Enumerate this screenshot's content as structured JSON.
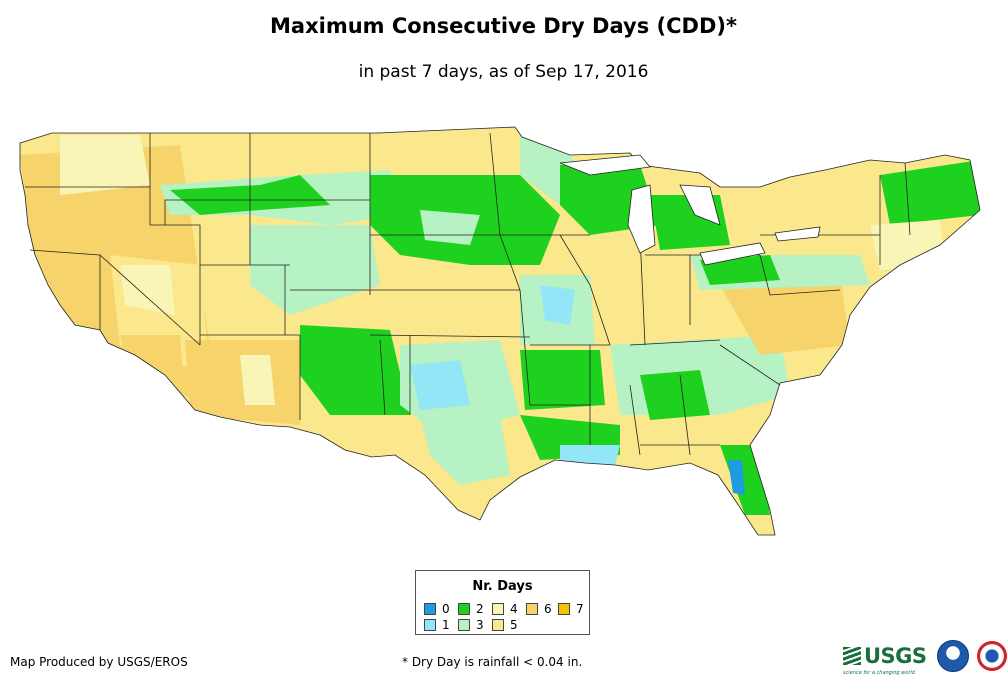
{
  "title": "Maximum Consecutive Dry Days (CDD)*",
  "subtitle": "in past 7 days, as of Sep 17, 2016",
  "legend": {
    "title": "Nr. Days",
    "items": [
      {
        "label": "0",
        "color": "#1f9be0"
      },
      {
        "label": "1",
        "color": "#93e6f5"
      },
      {
        "label": "2",
        "color": "#1fd11f"
      },
      {
        "label": "3",
        "color": "#b6f2c3"
      },
      {
        "label": "4",
        "color": "#f9f5b6"
      },
      {
        "label": "5",
        "color": "#fbe88c"
      },
      {
        "label": "6",
        "color": "#f7d36b"
      },
      {
        "label": "7",
        "color": "#f5c400"
      }
    ]
  },
  "footer": {
    "credit": "Map Produced by USGS/EROS",
    "note": "* Dry Day is rainfall < 0.04 in."
  },
  "logos": {
    "usgs": "USGS",
    "usgs_tagline": "science for a changing world"
  }
}
